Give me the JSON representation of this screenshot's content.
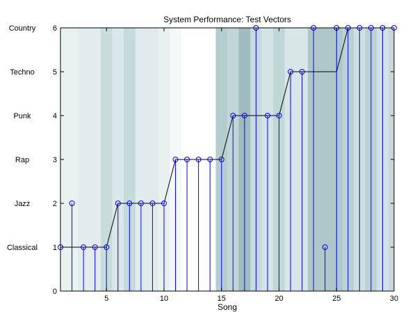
{
  "chart_data": {
    "type": "stem",
    "title": "System Performance: Test Vectors",
    "xlabel": "Song",
    "ylabel": "",
    "xlim": [
      1,
      30
    ],
    "ylim": [
      0,
      6
    ],
    "xticks": [
      5,
      10,
      15,
      20,
      25,
      30
    ],
    "yticks": [
      0,
      1,
      2,
      3,
      4,
      5,
      6
    ],
    "genre_labels": [
      {
        "value": 1,
        "label": "Classical"
      },
      {
        "value": 2,
        "label": "Jazz"
      },
      {
        "value": 3,
        "label": "Rap"
      },
      {
        "value": 4,
        "label": "Punk"
      },
      {
        "value": 5,
        "label": "Techno"
      },
      {
        "value": 6,
        "label": "Country"
      }
    ],
    "x": [
      1,
      2,
      3,
      4,
      5,
      6,
      7,
      8,
      9,
      10,
      11,
      12,
      13,
      14,
      15,
      16,
      17,
      18,
      19,
      20,
      21,
      22,
      23,
      24,
      25,
      26,
      27,
      28,
      29,
      30
    ],
    "true_genre": [
      1,
      1,
      1,
      1,
      1,
      2,
      2,
      2,
      2,
      2,
      3,
      3,
      3,
      3,
      3,
      4,
      4,
      4,
      4,
      4,
      5,
      5,
      5,
      5,
      5,
      6,
      6,
      6,
      6,
      6
    ],
    "predicted_genre": [
      1,
      2,
      1,
      1,
      1,
      2,
      2,
      2,
      2,
      2,
      3,
      3,
      3,
      3,
      3,
      4,
      4,
      6,
      4,
      4,
      5,
      5,
      6,
      1,
      6,
      6,
      6,
      6,
      6,
      6
    ],
    "background_shading": [
      {
        "x0": 1.0,
        "x1": 2.5,
        "color": "#eaf1f1"
      },
      {
        "x0": 2.5,
        "x1": 4.5,
        "color": "#e2eced"
      },
      {
        "x0": 4.5,
        "x1": 5.5,
        "color": "#c8dcdc"
      },
      {
        "x0": 5.5,
        "x1": 6.5,
        "color": "#dbe8e8"
      },
      {
        "x0": 6.5,
        "x1": 7.5,
        "color": "#c5dada"
      },
      {
        "x0": 7.5,
        "x1": 9.5,
        "color": "#e0eaeb"
      },
      {
        "x0": 9.5,
        "x1": 10.5,
        "color": "#e8f0f0"
      },
      {
        "x0": 10.5,
        "x1": 11.5,
        "color": "#f4f8f8"
      },
      {
        "x0": 11.5,
        "x1": 14.5,
        "color": "#ffffff"
      },
      {
        "x0": 14.5,
        "x1": 15.5,
        "color": "#b5cdcf"
      },
      {
        "x0": 15.5,
        "x1": 16.5,
        "color": "#c2d6d8"
      },
      {
        "x0": 16.5,
        "x1": 17.5,
        "color": "#9fbbbd"
      },
      {
        "x0": 17.5,
        "x1": 18.5,
        "color": "#c8dadb"
      },
      {
        "x0": 18.5,
        "x1": 19.5,
        "color": "#d5e3e4"
      },
      {
        "x0": 19.5,
        "x1": 20.5,
        "color": "#c0d6d7"
      },
      {
        "x0": 20.5,
        "x1": 22.5,
        "color": "#d9e6e7"
      },
      {
        "x0": 22.5,
        "x1": 25.5,
        "color": "#aec7c8"
      },
      {
        "x0": 25.5,
        "x1": 26.5,
        "color": "#bbd0d1"
      },
      {
        "x0": 26.5,
        "x1": 27.5,
        "color": "#cfe0e0"
      },
      {
        "x0": 27.5,
        "x1": 28.5,
        "color": "#bcd2d3"
      },
      {
        "x0": 28.5,
        "x1": 29.5,
        "color": "#d2e2e2"
      },
      {
        "x0": 29.5,
        "x1": 30.0,
        "color": "#c6d9da"
      }
    ],
    "colors": {
      "stem": "#0000ff",
      "true_line": "#000000",
      "axis": "#000000"
    },
    "grid": false,
    "legend": "none"
  }
}
